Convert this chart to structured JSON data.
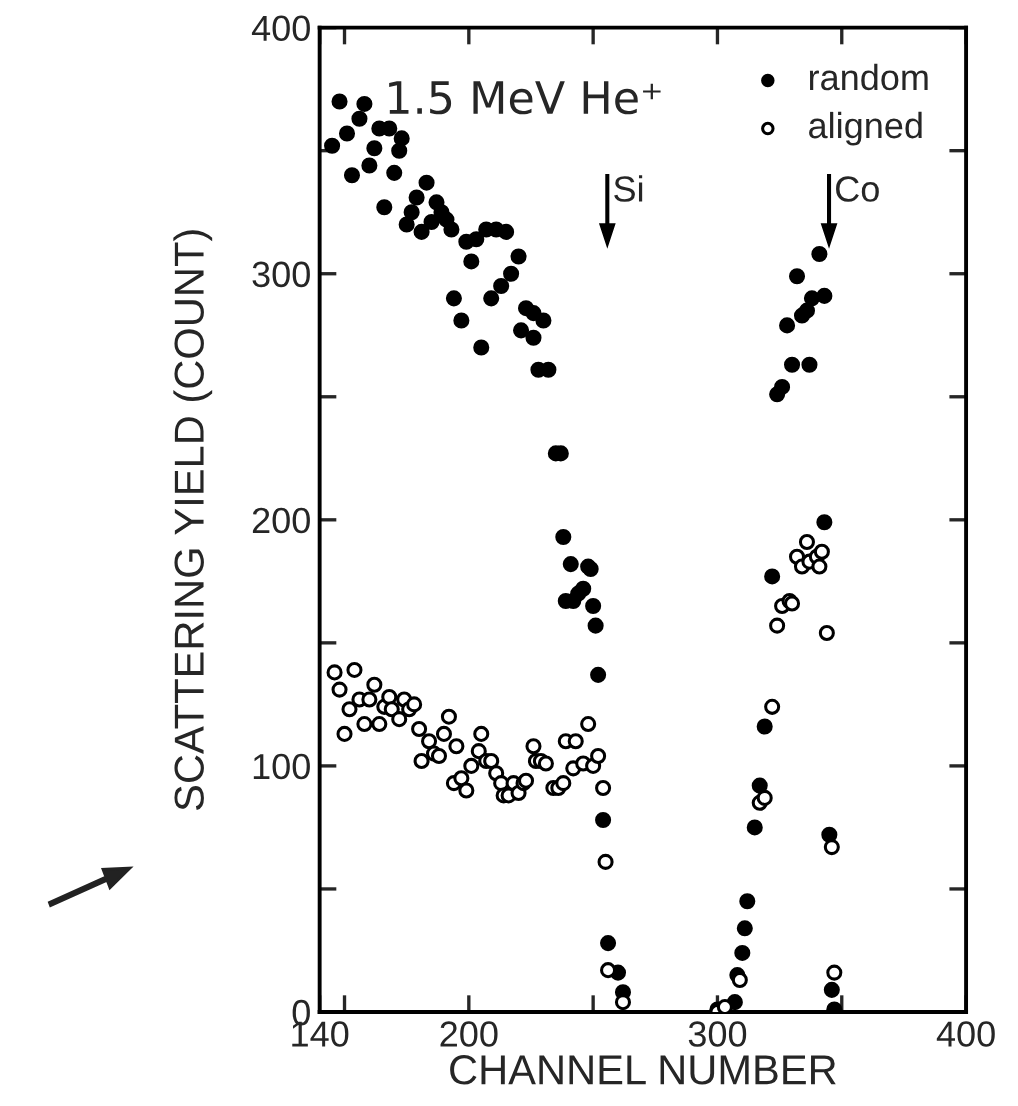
{
  "chart_data": {
    "type": "scatter",
    "title": "1.5 MeV He⁺",
    "xlabel": "CHANNEL NUMBER",
    "ylabel": "SCATTERING YIELD (COUNT)",
    "xlim": [
      140,
      400
    ],
    "ylim": [
      0,
      400
    ],
    "xticks": [
      140,
      {
        "value": 150,
        "label": null
      },
      200,
      {
        "value": 250,
        "label": null
      },
      300,
      {
        "value": 350,
        "label": null
      },
      400
    ],
    "yticks": [
      0,
      {
        "value": 50,
        "label": null
      },
      100,
      {
        "value": 150,
        "label": null
      },
      200,
      {
        "value": 250,
        "label": null
      },
      300,
      {
        "value": 350,
        "label": null
      },
      400
    ],
    "grid": false,
    "legend": "top right",
    "marker": "circle",
    "annotations": [
      "Si",
      "Co"
    ],
    "series": [
      {
        "name": "random",
        "color": "#000000",
        "x": [
          145,
          148,
          151,
          153,
          156,
          158,
          160,
          162,
          164,
          166,
          168,
          170,
          172,
          173,
          175,
          177,
          179,
          181,
          183,
          185,
          187,
          189,
          191,
          193,
          194,
          197,
          199,
          201,
          203,
          205,
          207,
          209,
          211,
          213,
          215,
          217,
          220,
          221,
          223,
          226,
          226,
          228,
          230,
          232,
          235,
          237,
          238,
          239,
          241,
          242,
          244,
          246,
          248,
          249,
          250,
          251,
          252,
          254,
          256,
          260,
          262,
          300,
          307,
          308,
          310,
          311,
          312,
          315,
          317,
          319,
          322,
          324,
          326,
          328,
          330,
          332,
          334,
          336,
          337,
          338,
          341,
          343,
          343,
          345,
          346,
          347
        ],
        "values": [
          352,
          370,
          357,
          340,
          363,
          369,
          344,
          351,
          359,
          327,
          359,
          341,
          350,
          355,
          320,
          325,
          331,
          317,
          337,
          321,
          329,
          325,
          322,
          318,
          290,
          281,
          313,
          305,
          314,
          270,
          318,
          290,
          318,
          295,
          317,
          300,
          307,
          277,
          286,
          274,
          284,
          261,
          281,
          261,
          227,
          227,
          193,
          167,
          182,
          167,
          170,
          172,
          181,
          180,
          165,
          157,
          137,
          78,
          28,
          16,
          8,
          1,
          4,
          15,
          24,
          34,
          45,
          75,
          92,
          116,
          177,
          251,
          254,
          279,
          263,
          299,
          283,
          285,
          263,
          290,
          308,
          199,
          291,
          72,
          9,
          1
        ]
      },
      {
        "name": "aligned",
        "color": "#ffffff",
        "x": [
          146,
          148,
          150,
          152,
          154,
          156,
          158,
          160,
          162,
          164,
          166,
          168,
          169,
          172,
          174,
          176,
          178,
          180,
          181,
          184,
          186,
          188,
          190,
          192,
          194,
          195,
          197,
          199,
          201,
          204,
          205,
          207,
          209,
          211,
          213,
          214,
          216,
          218,
          220,
          222,
          223,
          226,
          227,
          229,
          231,
          234,
          236,
          238,
          239,
          242,
          243,
          246,
          248,
          250,
          252,
          254,
          255,
          256,
          262,
          300,
          303,
          309,
          317,
          319,
          322,
          324,
          326,
          329,
          330,
          332,
          334,
          336,
          337,
          340,
          341,
          342,
          344,
          346,
          347
        ],
        "values": [
          138,
          131,
          113,
          123,
          139,
          127,
          117,
          127,
          133,
          117,
          124,
          128,
          123,
          119,
          127,
          123,
          125,
          115,
          102,
          110,
          105,
          104,
          113,
          120,
          93,
          108,
          95,
          90,
          100,
          106,
          113,
          102,
          102,
          97,
          93,
          88,
          88,
          93,
          89,
          93,
          94,
          108,
          102,
          102,
          101,
          91,
          91,
          93,
          110,
          99,
          110,
          101,
          117,
          100,
          104,
          91,
          61,
          17,
          4,
          0,
          2,
          13,
          85,
          87,
          124,
          157,
          165,
          167,
          166,
          185,
          181,
          191,
          183,
          185,
          181,
          187,
          154,
          67,
          16
        ]
      }
    ]
  }
}
